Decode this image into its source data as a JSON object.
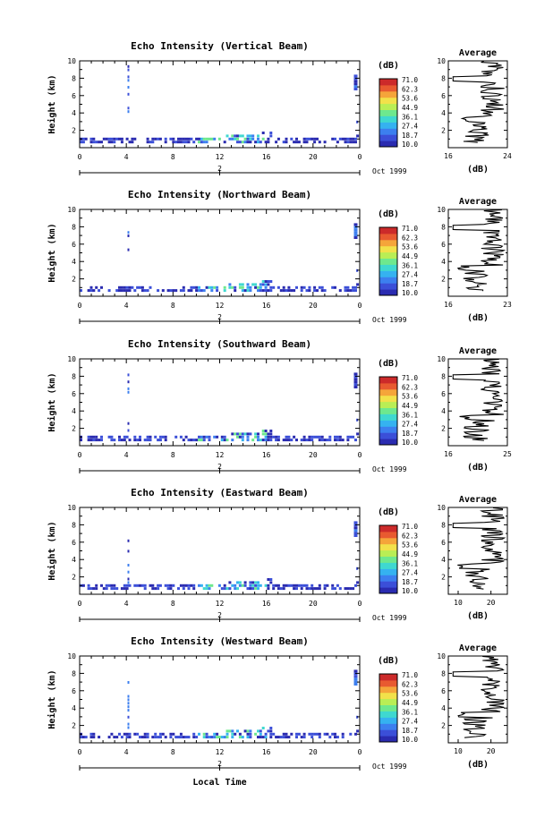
{
  "chart_data": [
    {
      "type": "heatmap",
      "title": "Echo Intensity (Vertical Beam)",
      "ylabel": "Height (km)",
      "xticks": [
        "0",
        "4",
        "8",
        "12",
        "16",
        "20",
        "0"
      ],
      "yticks": [
        "2",
        "4",
        "6",
        "8",
        "10"
      ],
      "xlim": [
        0,
        24
      ],
      "ylim": [
        0,
        10
      ],
      "day": "2",
      "date": "Oct 1999",
      "colorbar": {
        "unit": "(dB)",
        "levels": [
          "71.0",
          "62.3",
          "53.6",
          "44.9",
          "36.1",
          "27.4",
          "18.7",
          "10.0"
        ]
      },
      "average": {
        "title": "Average",
        "xlabel": "(dB)",
        "xticks": [
          "16",
          "24"
        ],
        "xlim": [
          16,
          24
        ],
        "ylim": [
          0,
          10
        ],
        "yticks": [
          "2",
          "4",
          "6",
          "8",
          "10"
        ]
      }
    },
    {
      "type": "heatmap",
      "title": "Echo Intensity (Northward Beam)",
      "ylabel": "Height (km)",
      "xticks": [
        "0",
        "4",
        "8",
        "12",
        "16",
        "20",
        "0"
      ],
      "yticks": [
        "2",
        "4",
        "6",
        "8",
        "10"
      ],
      "xlim": [
        0,
        24
      ],
      "ylim": [
        0,
        10
      ],
      "day": "2",
      "date": "Oct 1999",
      "colorbar": {
        "unit": "(dB)",
        "levels": [
          "71.0",
          "62.3",
          "53.6",
          "44.9",
          "36.1",
          "27.4",
          "18.7",
          "10.0"
        ]
      },
      "average": {
        "title": "Average",
        "xlabel": "(dB)",
        "xticks": [
          "16",
          "23"
        ],
        "xlim": [
          16,
          23
        ],
        "ylim": [
          0,
          10
        ],
        "yticks": [
          "2",
          "4",
          "6",
          "8",
          "10"
        ]
      }
    },
    {
      "type": "heatmap",
      "title": "Echo Intensity (Southward Beam)",
      "ylabel": "Height (km)",
      "xticks": [
        "0",
        "4",
        "8",
        "12",
        "16",
        "20",
        "0"
      ],
      "yticks": [
        "2",
        "4",
        "6",
        "8",
        "10"
      ],
      "xlim": [
        0,
        24
      ],
      "ylim": [
        0,
        10
      ],
      "day": "2",
      "date": "Oct 1999",
      "colorbar": {
        "unit": "(dB)",
        "levels": [
          "71.0",
          "62.3",
          "53.6",
          "44.9",
          "36.1",
          "27.4",
          "18.7",
          "10.0"
        ]
      },
      "average": {
        "title": "Average",
        "xlabel": "(dB)",
        "xticks": [
          "16",
          "25"
        ],
        "xlim": [
          16,
          25
        ],
        "ylim": [
          0,
          10
        ],
        "yticks": [
          "2",
          "4",
          "6",
          "8",
          "10"
        ]
      }
    },
    {
      "type": "heatmap",
      "title": "Echo Intensity (Eastward Beam)",
      "ylabel": "Height (km)",
      "xticks": [
        "0",
        "4",
        "8",
        "12",
        "16",
        "20",
        "0"
      ],
      "yticks": [
        "2",
        "4",
        "6",
        "8",
        "10"
      ],
      "xlim": [
        0,
        24
      ],
      "ylim": [
        0,
        10
      ],
      "day": "2",
      "date": "Oct 1999",
      "colorbar": {
        "unit": "(dB)",
        "levels": [
          "71.0",
          "62.3",
          "53.6",
          "44.9",
          "36.1",
          "27.4",
          "18.7",
          "10.0"
        ]
      },
      "average": {
        "title": "Average",
        "xlabel": "(dB)",
        "xticks": [
          "10",
          "20"
        ],
        "xlim": [
          7,
          25
        ],
        "ylim": [
          0,
          10
        ],
        "yticks": [
          "2",
          "4",
          "6",
          "8",
          "10"
        ]
      }
    },
    {
      "type": "heatmap",
      "title": "Echo Intensity (Westward Beam)",
      "ylabel": "Height (km)",
      "xticks": [
        "0",
        "4",
        "8",
        "12",
        "16",
        "20",
        "0"
      ],
      "yticks": [
        "2",
        "4",
        "6",
        "8",
        "10"
      ],
      "xlim": [
        0,
        24
      ],
      "ylim": [
        0,
        10
      ],
      "day": "2",
      "date": "Oct 1999",
      "xlabel": "Local Time",
      "colorbar": {
        "unit": "(dB)",
        "levels": [
          "71.0",
          "62.3",
          "53.6",
          "44.9",
          "36.1",
          "27.4",
          "18.7",
          "10.0"
        ]
      },
      "average": {
        "title": "Average",
        "xlabel": "(dB)",
        "xticks": [
          "10",
          "20"
        ],
        "xlim": [
          7,
          25
        ],
        "ylim": [
          0,
          10
        ],
        "yticks": [
          "2",
          "4",
          "6",
          "8",
          "10"
        ]
      }
    }
  ],
  "colors": {
    "scale": [
      "#2a2bb0",
      "#3b4fd8",
      "#3c7fef",
      "#35b2f0",
      "#3fd8d0",
      "#6ee88e",
      "#b9ee55",
      "#f2e14a",
      "#f5a53a",
      "#e85a30",
      "#cc2a2a"
    ]
  }
}
